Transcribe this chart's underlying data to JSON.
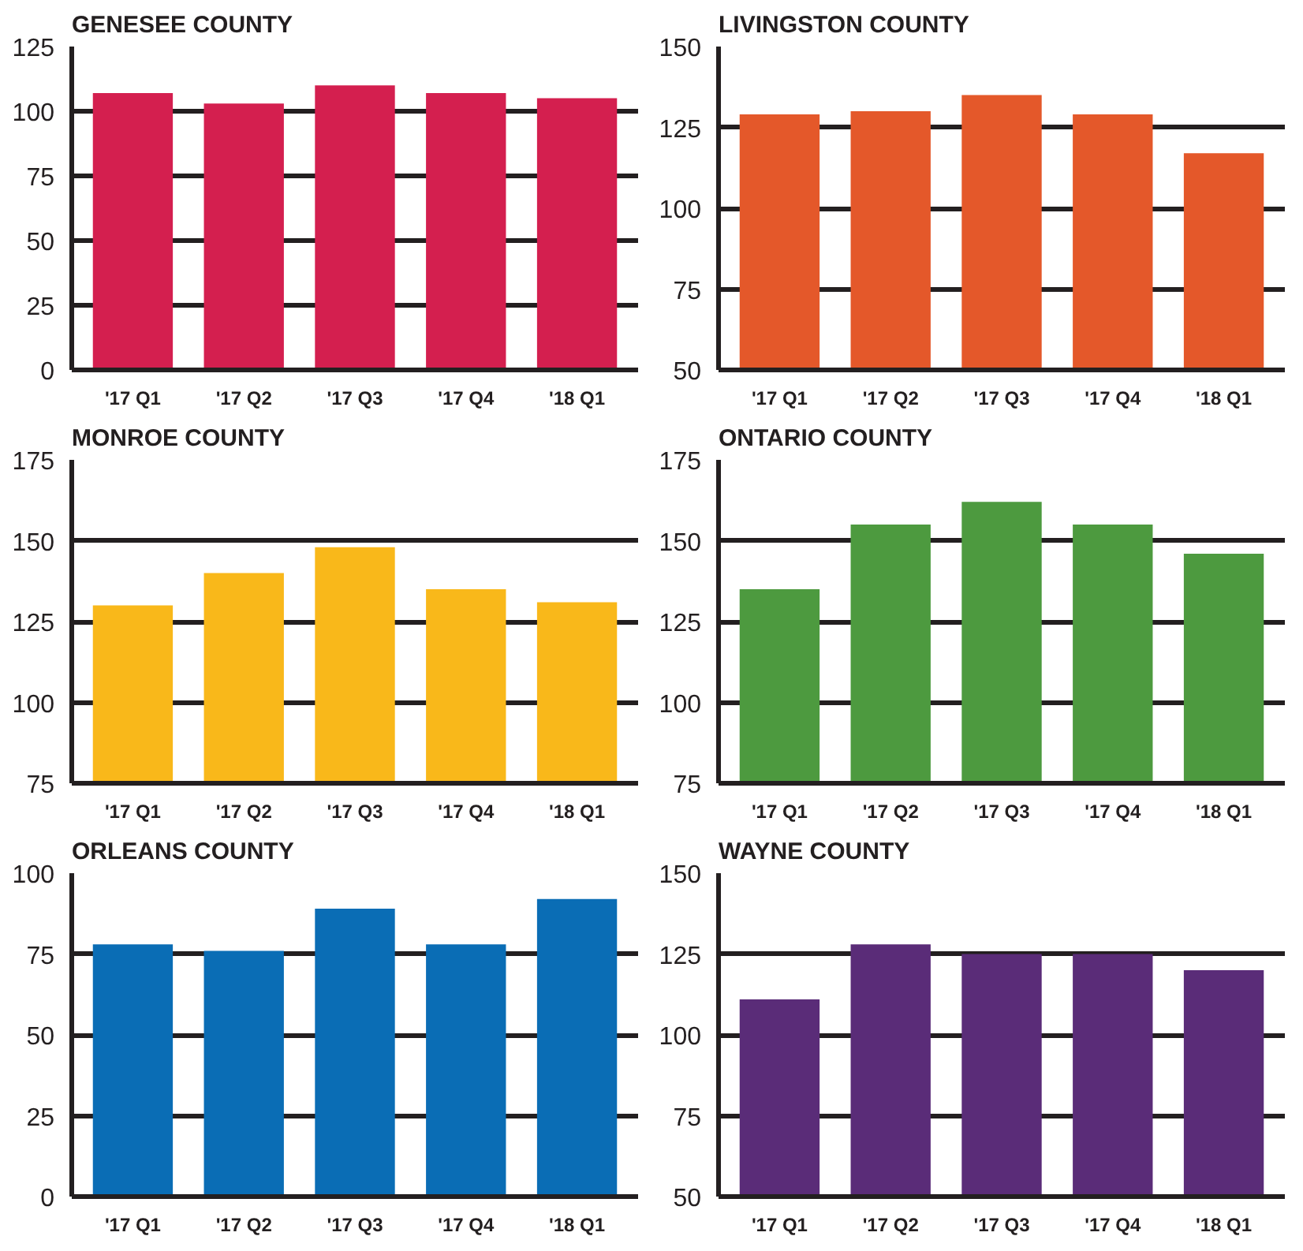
{
  "chart_data": [
    {
      "type": "bar",
      "title": "GENESEE COUNTY",
      "categories": [
        "'17 Q1",
        "'17 Q2",
        "'17 Q3",
        "'17 Q4",
        "'18 Q1"
      ],
      "values": [
        107,
        103,
        110,
        107,
        105
      ],
      "color": "#d41f4f",
      "ylim": [
        0,
        125
      ],
      "yticks": [
        0,
        25,
        50,
        75,
        100,
        125
      ],
      "grid": "y"
    },
    {
      "type": "bar",
      "title": "LIVINGSTON COUNTY",
      "categories": [
        "'17 Q1",
        "'17 Q2",
        "'17 Q3",
        "'17 Q4",
        "'18 Q1"
      ],
      "values": [
        129,
        130,
        135,
        129,
        117
      ],
      "color": "#e4582a",
      "ylim": [
        50,
        150
      ],
      "yticks": [
        50,
        75,
        100,
        125,
        150
      ],
      "grid": "y"
    },
    {
      "type": "bar",
      "title": "MONROE COUNTY",
      "categories": [
        "'17 Q1",
        "'17 Q2",
        "'17 Q3",
        "'17 Q4",
        "'18 Q1"
      ],
      "values": [
        130,
        140,
        148,
        135,
        131
      ],
      "color": "#f9b81a",
      "ylim": [
        75,
        175
      ],
      "yticks": [
        75,
        100,
        125,
        150,
        175
      ],
      "grid": "y"
    },
    {
      "type": "bar",
      "title": "ONTARIO COUNTY",
      "categories": [
        "'17 Q1",
        "'17 Q2",
        "'17 Q3",
        "'17 Q4",
        "'18 Q1"
      ],
      "values": [
        135,
        155,
        162,
        155,
        146
      ],
      "color": "#4d9a3f",
      "ylim": [
        75,
        175
      ],
      "yticks": [
        75,
        100,
        125,
        150,
        175
      ],
      "grid": "y"
    },
    {
      "type": "bar",
      "title": "ORLEANS COUNTY",
      "categories": [
        "'17 Q1",
        "'17 Q2",
        "'17 Q3",
        "'17 Q4",
        "'18 Q1"
      ],
      "values": [
        78,
        76,
        89,
        78,
        92
      ],
      "color": "#0a6db5",
      "ylim": [
        0,
        100
      ],
      "yticks": [
        0,
        25,
        50,
        75,
        100
      ],
      "grid": "y"
    },
    {
      "type": "bar",
      "title": "WAYNE COUNTY",
      "categories": [
        "'17 Q1",
        "'17 Q2",
        "'17 Q3",
        "'17 Q4",
        "'18 Q1"
      ],
      "values": [
        111,
        128,
        125,
        125,
        120
      ],
      "color": "#5a2c78",
      "ylim": [
        50,
        150
      ],
      "yticks": [
        50,
        75,
        100,
        125,
        150
      ],
      "grid": "y"
    }
  ]
}
